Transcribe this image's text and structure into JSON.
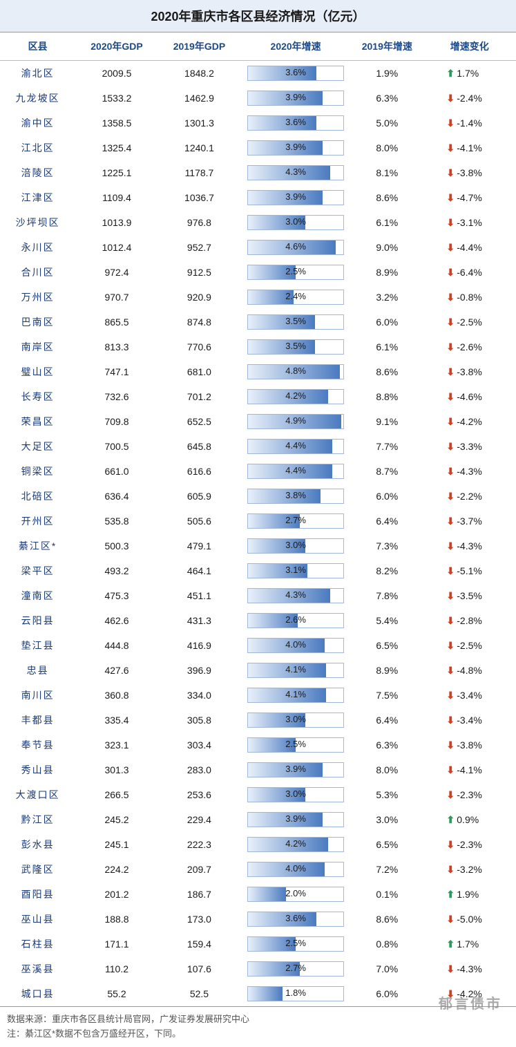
{
  "title": "2020年重庆市各区县经济情况（亿元）",
  "columns": [
    "区县",
    "2020年GDP",
    "2019年GDP",
    "2020年增速",
    "2019年增速",
    "增速变化"
  ],
  "bar_max": 5.0,
  "colors": {
    "title_bg": "#e8eef7",
    "header_text": "#1a4a8a",
    "district_text": "#1a3a7a",
    "bar_gradient_start": "#e8f0fa",
    "bar_gradient_end": "#4a7ac0",
    "bar_border": "#a0b8d8",
    "arrow_up": "#2a9a5a",
    "arrow_down": "#d04020"
  },
  "rows": [
    {
      "district": "渝北区",
      "gdp2020": "2009.5",
      "gdp2019": "1848.2",
      "growth2020": 3.6,
      "growth2019": "1.9%",
      "change": 1.7,
      "dir": "up"
    },
    {
      "district": "九龙坡区",
      "gdp2020": "1533.2",
      "gdp2019": "1462.9",
      "growth2020": 3.9,
      "growth2019": "6.3%",
      "change": -2.4,
      "dir": "down"
    },
    {
      "district": "渝中区",
      "gdp2020": "1358.5",
      "gdp2019": "1301.3",
      "growth2020": 3.6,
      "growth2019": "5.0%",
      "change": -1.4,
      "dir": "down"
    },
    {
      "district": "江北区",
      "gdp2020": "1325.4",
      "gdp2019": "1240.1",
      "growth2020": 3.9,
      "growth2019": "8.0%",
      "change": -4.1,
      "dir": "down"
    },
    {
      "district": "涪陵区",
      "gdp2020": "1225.1",
      "gdp2019": "1178.7",
      "growth2020": 4.3,
      "growth2019": "8.1%",
      "change": -3.8,
      "dir": "down"
    },
    {
      "district": "江津区",
      "gdp2020": "1109.4",
      "gdp2019": "1036.7",
      "growth2020": 3.9,
      "growth2019": "8.6%",
      "change": -4.7,
      "dir": "down"
    },
    {
      "district": "沙坪坝区",
      "gdp2020": "1013.9",
      "gdp2019": "976.8",
      "growth2020": 3.0,
      "growth2019": "6.1%",
      "change": -3.1,
      "dir": "down"
    },
    {
      "district": "永川区",
      "gdp2020": "1012.4",
      "gdp2019": "952.7",
      "growth2020": 4.6,
      "growth2019": "9.0%",
      "change": -4.4,
      "dir": "down"
    },
    {
      "district": "合川区",
      "gdp2020": "972.4",
      "gdp2019": "912.5",
      "growth2020": 2.5,
      "growth2019": "8.9%",
      "change": -6.4,
      "dir": "down"
    },
    {
      "district": "万州区",
      "gdp2020": "970.7",
      "gdp2019": "920.9",
      "growth2020": 2.4,
      "growth2019": "3.2%",
      "change": -0.8,
      "dir": "down"
    },
    {
      "district": "巴南区",
      "gdp2020": "865.5",
      "gdp2019": "874.8",
      "growth2020": 3.5,
      "growth2019": "6.0%",
      "change": -2.5,
      "dir": "down"
    },
    {
      "district": "南岸区",
      "gdp2020": "813.3",
      "gdp2019": "770.6",
      "growth2020": 3.5,
      "growth2019": "6.1%",
      "change": -2.6,
      "dir": "down"
    },
    {
      "district": "璧山区",
      "gdp2020": "747.1",
      "gdp2019": "681.0",
      "growth2020": 4.8,
      "growth2019": "8.6%",
      "change": -3.8,
      "dir": "down"
    },
    {
      "district": "长寿区",
      "gdp2020": "732.6",
      "gdp2019": "701.2",
      "growth2020": 4.2,
      "growth2019": "8.8%",
      "change": -4.6,
      "dir": "down"
    },
    {
      "district": "荣昌区",
      "gdp2020": "709.8",
      "gdp2019": "652.5",
      "growth2020": 4.9,
      "growth2019": "9.1%",
      "change": -4.2,
      "dir": "down"
    },
    {
      "district": "大足区",
      "gdp2020": "700.5",
      "gdp2019": "645.8",
      "growth2020": 4.4,
      "growth2019": "7.7%",
      "change": -3.3,
      "dir": "down"
    },
    {
      "district": "铜梁区",
      "gdp2020": "661.0",
      "gdp2019": "616.6",
      "growth2020": 4.4,
      "growth2019": "8.7%",
      "change": -4.3,
      "dir": "down"
    },
    {
      "district": "北碚区",
      "gdp2020": "636.4",
      "gdp2019": "605.9",
      "growth2020": 3.8,
      "growth2019": "6.0%",
      "change": -2.2,
      "dir": "down"
    },
    {
      "district": "开州区",
      "gdp2020": "535.8",
      "gdp2019": "505.6",
      "growth2020": 2.7,
      "growth2019": "6.4%",
      "change": -3.7,
      "dir": "down"
    },
    {
      "district": "綦江区*",
      "gdp2020": "500.3",
      "gdp2019": "479.1",
      "growth2020": 3.0,
      "growth2019": "7.3%",
      "change": -4.3,
      "dir": "down"
    },
    {
      "district": "梁平区",
      "gdp2020": "493.2",
      "gdp2019": "464.1",
      "growth2020": 3.1,
      "growth2019": "8.2%",
      "change": -5.1,
      "dir": "down"
    },
    {
      "district": "潼南区",
      "gdp2020": "475.3",
      "gdp2019": "451.1",
      "growth2020": 4.3,
      "growth2019": "7.8%",
      "change": -3.5,
      "dir": "down"
    },
    {
      "district": "云阳县",
      "gdp2020": "462.6",
      "gdp2019": "431.3",
      "growth2020": 2.6,
      "growth2019": "5.4%",
      "change": -2.8,
      "dir": "down"
    },
    {
      "district": "垫江县",
      "gdp2020": "444.8",
      "gdp2019": "416.9",
      "growth2020": 4.0,
      "growth2019": "6.5%",
      "change": -2.5,
      "dir": "down"
    },
    {
      "district": "忠县",
      "gdp2020": "427.6",
      "gdp2019": "396.9",
      "growth2020": 4.1,
      "growth2019": "8.9%",
      "change": -4.8,
      "dir": "down"
    },
    {
      "district": "南川区",
      "gdp2020": "360.8",
      "gdp2019": "334.0",
      "growth2020": 4.1,
      "growth2019": "7.5%",
      "change": -3.4,
      "dir": "down"
    },
    {
      "district": "丰都县",
      "gdp2020": "335.4",
      "gdp2019": "305.8",
      "growth2020": 3.0,
      "growth2019": "6.4%",
      "change": -3.4,
      "dir": "down"
    },
    {
      "district": "奉节县",
      "gdp2020": "323.1",
      "gdp2019": "303.4",
      "growth2020": 2.5,
      "growth2019": "6.3%",
      "change": -3.8,
      "dir": "down"
    },
    {
      "district": "秀山县",
      "gdp2020": "301.3",
      "gdp2019": "283.0",
      "growth2020": 3.9,
      "growth2019": "8.0%",
      "change": -4.1,
      "dir": "down"
    },
    {
      "district": "大渡口区",
      "gdp2020": "266.5",
      "gdp2019": "253.6",
      "growth2020": 3.0,
      "growth2019": "5.3%",
      "change": -2.3,
      "dir": "down"
    },
    {
      "district": "黔江区",
      "gdp2020": "245.2",
      "gdp2019": "229.4",
      "growth2020": 3.9,
      "growth2019": "3.0%",
      "change": 0.9,
      "dir": "up"
    },
    {
      "district": "彭水县",
      "gdp2020": "245.1",
      "gdp2019": "222.3",
      "growth2020": 4.2,
      "growth2019": "6.5%",
      "change": -2.3,
      "dir": "down"
    },
    {
      "district": "武隆区",
      "gdp2020": "224.2",
      "gdp2019": "209.7",
      "growth2020": 4.0,
      "growth2019": "7.2%",
      "change": -3.2,
      "dir": "down"
    },
    {
      "district": "酉阳县",
      "gdp2020": "201.2",
      "gdp2019": "186.7",
      "growth2020": 2.0,
      "growth2019": "0.1%",
      "change": 1.9,
      "dir": "up"
    },
    {
      "district": "巫山县",
      "gdp2020": "188.8",
      "gdp2019": "173.0",
      "growth2020": 3.6,
      "growth2019": "8.6%",
      "change": -5.0,
      "dir": "down"
    },
    {
      "district": "石柱县",
      "gdp2020": "171.1",
      "gdp2019": "159.4",
      "growth2020": 2.5,
      "growth2019": "0.8%",
      "change": 1.7,
      "dir": "up"
    },
    {
      "district": "巫溪县",
      "gdp2020": "110.2",
      "gdp2019": "107.6",
      "growth2020": 2.7,
      "growth2019": "7.0%",
      "change": -4.3,
      "dir": "down"
    },
    {
      "district": "城口县",
      "gdp2020": "55.2",
      "gdp2019": "52.5",
      "growth2020": 1.8,
      "growth2019": "6.0%",
      "change": -4.2,
      "dir": "down"
    }
  ],
  "footer_source": "数据来源：重庆市各区县统计局官网，广发证券发展研究中心",
  "footer_note": "注：綦江区*数据不包含万盛经开区，下同。",
  "watermark": "郁言债市"
}
